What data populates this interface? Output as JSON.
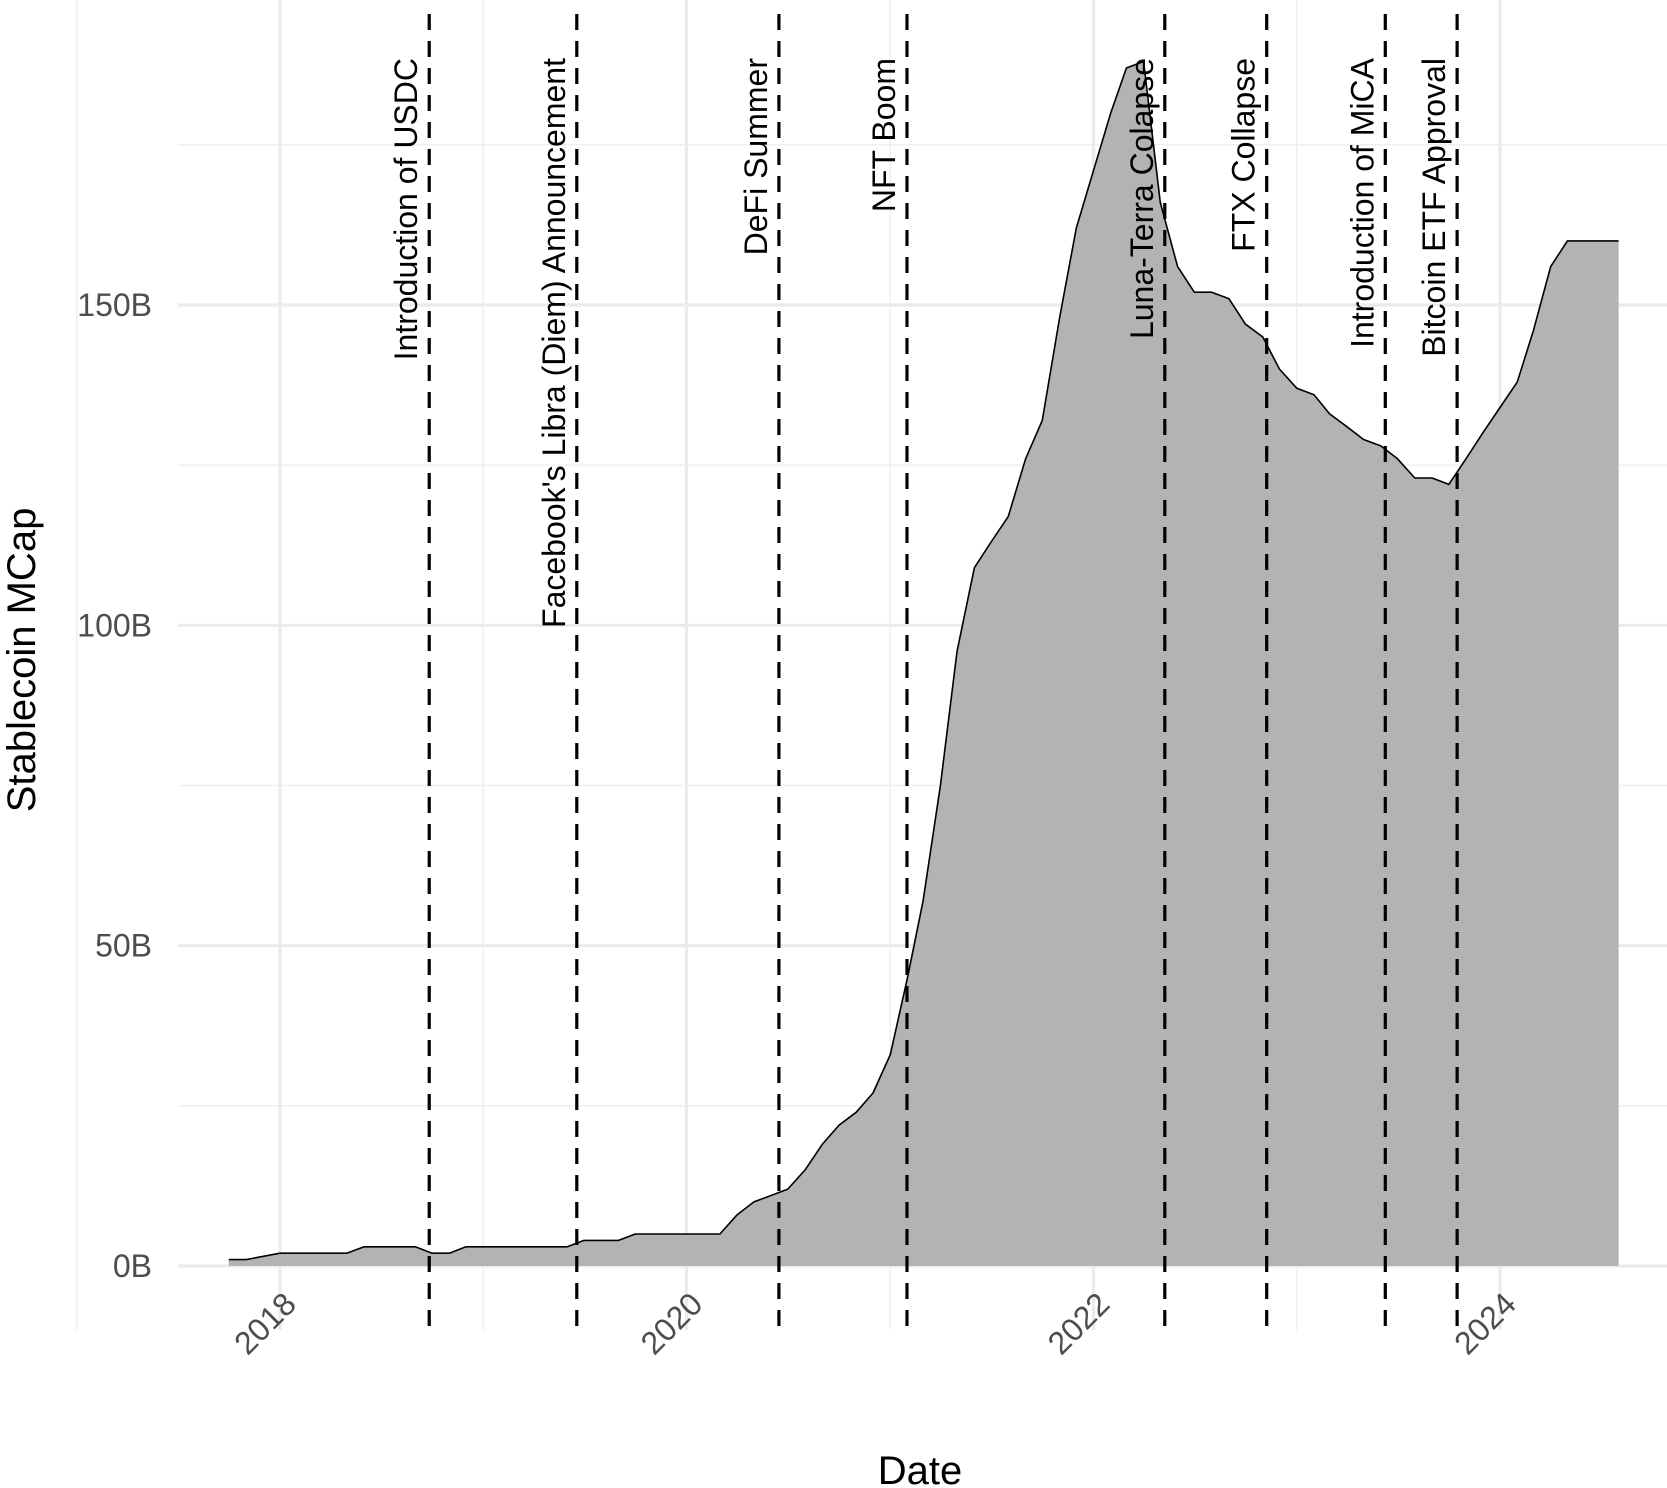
{
  "chart_data": {
    "type": "area",
    "title": "",
    "xlabel": "Date",
    "ylabel": "Stablecoin MCap",
    "ylim": [
      -15,
      198
    ],
    "xlim": [
      "2017-05-01",
      "2025-06-01"
    ],
    "grid": true,
    "y_ticks": [
      {
        "value": 0,
        "label": "0B"
      },
      {
        "value": 50,
        "label": "50B"
      },
      {
        "value": 100,
        "label": "100B"
      },
      {
        "value": 150,
        "label": "150B"
      }
    ],
    "x_ticks": [
      {
        "value": "2018-01-01",
        "label": "2018"
      },
      {
        "value": "2020-01-01",
        "label": "2020"
      },
      {
        "value": "2022-01-01",
        "label": "2022"
      },
      {
        "value": "2024-01-01",
        "label": "2024"
      }
    ],
    "series": [
      {
        "fill": "#b3b3b3",
        "line_color": "#000000",
        "x": [
          "2017-10-01",
          "2017-11-01",
          "2018-01-01",
          "2018-03-01",
          "2018-05-01",
          "2018-06-01",
          "2018-09-01",
          "2018-10-01",
          "2018-11-01",
          "2018-12-01",
          "2019-01-01",
          "2019-03-01",
          "2019-05-01",
          "2019-06-01",
          "2019-07-01",
          "2019-08-01",
          "2019-09-01",
          "2019-10-01",
          "2019-11-01",
          "2019-12-01",
          "2020-01-01",
          "2020-03-01",
          "2020-04-01",
          "2020-05-01",
          "2020-06-01",
          "2020-07-01",
          "2020-08-01",
          "2020-09-01",
          "2020-10-01",
          "2020-11-01",
          "2020-12-01",
          "2021-01-01",
          "2021-02-01",
          "2021-03-01",
          "2021-04-01",
          "2021-05-01",
          "2021-06-01",
          "2021-07-01",
          "2021-08-01",
          "2021-09-01",
          "2021-10-01",
          "2021-11-01",
          "2021-12-01",
          "2022-01-01",
          "2022-02-01",
          "2022-03-01",
          "2022-04-01",
          "2022-05-01",
          "2022-06-01",
          "2022-07-01",
          "2022-08-01",
          "2022-09-01",
          "2022-10-01",
          "2022-11-01",
          "2022-12-01",
          "2023-01-01",
          "2023-02-01",
          "2023-03-01",
          "2023-04-01",
          "2023-05-01",
          "2023-06-01",
          "2023-07-01",
          "2023-08-01",
          "2023-09-01",
          "2023-10-01",
          "2023-11-01",
          "2023-12-01",
          "2024-01-01",
          "2024-02-01",
          "2024-03-01",
          "2024-04-01",
          "2024-05-01",
          "2024-06-01",
          "2024-07-01",
          "2024-08-01"
        ],
        "values": [
          1,
          1,
          2,
          2,
          2,
          3,
          3,
          2,
          2,
          3,
          3,
          3,
          3,
          3,
          4,
          4,
          4,
          5,
          5,
          5,
          5,
          5,
          8,
          10,
          11,
          12,
          15,
          19,
          22,
          24,
          27,
          33,
          45,
          57,
          75,
          96,
          109,
          113,
          117,
          126,
          132,
          148,
          162,
          171,
          180,
          187,
          188,
          166,
          156,
          152,
          152,
          151,
          147,
          145,
          140,
          137,
          136,
          133,
          131,
          129,
          128,
          126,
          123,
          123,
          122,
          126,
          130,
          134,
          138,
          146,
          156,
          160,
          160,
          160,
          160
        ]
      }
    ],
    "events": [
      {
        "date": "2018-09-26",
        "label": "Introduction of USDC"
      },
      {
        "date": "2019-06-18",
        "label": "Facebook's Libra (Diem) Announcement"
      },
      {
        "date": "2020-06-15",
        "label": "DeFi Summer"
      },
      {
        "date": "2021-01-31",
        "label": "NFT Boom"
      },
      {
        "date": "2022-05-09",
        "label": "Luna-Terra Colapse"
      },
      {
        "date": "2022-11-08",
        "label": "FTX Collapse"
      },
      {
        "date": "2023-06-09",
        "label": "Introduction of MiCA"
      },
      {
        "date": "2023-10-16",
        "label": "Bitcoin ETF Approval"
      }
    ]
  }
}
